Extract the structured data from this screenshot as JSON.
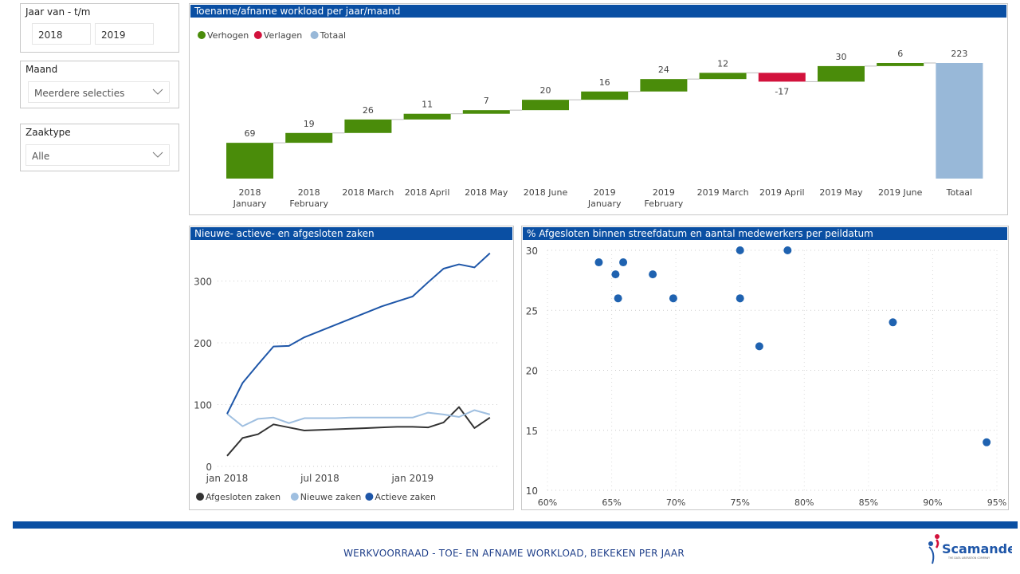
{
  "filters": {
    "year_range": {
      "label": "Jaar van - t/m",
      "from": "2018",
      "to": "2019"
    },
    "month": {
      "label": "Maand",
      "value": "Meerdere selecties"
    },
    "case_type": {
      "label": "Zaaktype",
      "value": "Alle"
    }
  },
  "colors": {
    "header_blue": "#0a4fa3",
    "increase": "#4a8c0a",
    "decrease": "#d2123c",
    "total": "#98b8d8",
    "closed": "#333333",
    "new": "#9fbfe0",
    "active": "#1e56a8",
    "scatter": "#1f62b0"
  },
  "footer": {
    "title": "WERKVOORRAAD - TOE- EN AFNAME WORKLOAD, BEKEKEN PER JAAR",
    "logo_text": "Scamander",
    "logo_subtitle": "THE DATA LIBERATION COMPANY"
  },
  "chart_data": [
    {
      "type": "bar",
      "subtype": "waterfall",
      "title": "Toename/afname workload per jaar/maand",
      "legend": [
        "Verhogen",
        "Verlagen",
        "Totaal"
      ],
      "legend_position": "top-left",
      "categories": [
        [
          "2018",
          "January"
        ],
        [
          "2018",
          "February"
        ],
        [
          "2018 March"
        ],
        [
          "2018 April"
        ],
        [
          "2018 May"
        ],
        [
          "2018 June"
        ],
        [
          "2019",
          "January"
        ],
        [
          "2019",
          "February"
        ],
        [
          "2019 March"
        ],
        [
          "2019 April"
        ],
        [
          "2019 May"
        ],
        [
          "2019 June"
        ],
        [
          "Totaal"
        ]
      ],
      "values": [
        69,
        19,
        26,
        11,
        7,
        20,
        16,
        24,
        12,
        -17,
        30,
        6
      ],
      "total": 223,
      "ylim": [
        0,
        223
      ]
    },
    {
      "type": "line",
      "title": "Nieuwe- actieve- en afgesloten zaken",
      "legend_position": "bottom-left",
      "x_ticks": [
        "jan 2018",
        "jul 2018",
        "jan 2019"
      ],
      "x_months": [
        0,
        1,
        2,
        3,
        4,
        5,
        6,
        7,
        8,
        9,
        10,
        11,
        12,
        13,
        14,
        15,
        16,
        17
      ],
      "y_ticks": [
        0,
        100,
        200,
        300
      ],
      "ylim": [
        0,
        350
      ],
      "grid": true,
      "series": [
        {
          "name": "Afgesloten zaken",
          "values": [
            17,
            46,
            52,
            68,
            63,
            58,
            59,
            60,
            61,
            62,
            63,
            64,
            64,
            63,
            71,
            96,
            62,
            79
          ]
        },
        {
          "name": "Nieuwe zaken",
          "values": [
            85,
            65,
            77,
            79,
            70,
            78,
            78,
            78,
            79,
            79,
            79,
            79,
            79,
            87,
            84,
            80,
            91,
            84
          ]
        },
        {
          "name": "Actieve zaken",
          "values": [
            85,
            135,
            165,
            194,
            195,
            209,
            219,
            229,
            239,
            249,
            259,
            267,
            275,
            298,
            320,
            327,
            322,
            345
          ]
        }
      ]
    },
    {
      "type": "scatter",
      "title": "% Afgesloten binnen streefdatum en aantal medewerkers per peildatum",
      "x_ticks": [
        "60%",
        "65%",
        "70%",
        "75%",
        "80%",
        "85%",
        "90%",
        "95%"
      ],
      "y_ticks": [
        10,
        15,
        20,
        25,
        30
      ],
      "xlim": [
        60,
        95
      ],
      "ylim": [
        10,
        30
      ],
      "grid": true,
      "points": [
        {
          "x": 64.0,
          "y": 29
        },
        {
          "x": 65.9,
          "y": 29
        },
        {
          "x": 65.3,
          "y": 28
        },
        {
          "x": 68.2,
          "y": 28
        },
        {
          "x": 65.5,
          "y": 26
        },
        {
          "x": 69.8,
          "y": 26
        },
        {
          "x": 75.0,
          "y": 26
        },
        {
          "x": 75.0,
          "y": 30
        },
        {
          "x": 78.7,
          "y": 30
        },
        {
          "x": 76.5,
          "y": 22
        },
        {
          "x": 86.9,
          "y": 24
        },
        {
          "x": 94.2,
          "y": 14
        }
      ]
    }
  ]
}
